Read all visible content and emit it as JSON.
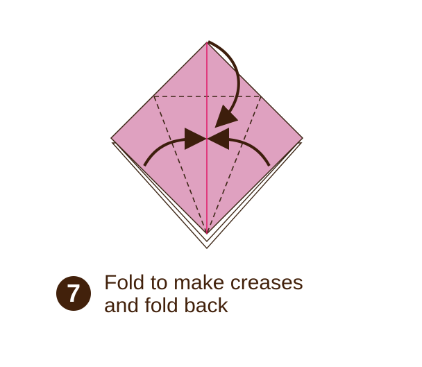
{
  "step": {
    "number": "7",
    "instruction_lines": [
      "Fold to make creases",
      "and fold back"
    ]
  },
  "colors": {
    "paper": "#dfa1c0",
    "outline": "#3d2616",
    "center_crease": "#e0216e",
    "arrow": "#3d1e0c",
    "badge": "#42210b",
    "text": "#42210b"
  }
}
